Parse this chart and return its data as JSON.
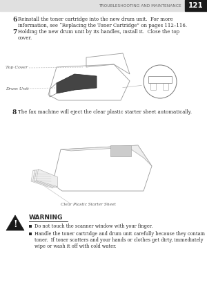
{
  "page_num": "121",
  "header_text": "TROUBLESHOOTING AND MAINTENANCE",
  "header_bg": "#e0e0e0",
  "page_bg": "#ffffff",
  "step6_num": "6",
  "step6_text": "Reinstall the toner cartridge into the new drum unit.  For more\ninformation, see “Replacing the Toner Cartridge” on pages 112–116.",
  "step7_num": "7",
  "step7_text": "Holding the new drum unit by its handles, install it.  Close the top\ncover.",
  "label_top_cover": "Top Cover",
  "label_drum_unit": "Drum Unit",
  "step8_num": "8",
  "step8_text": "The fax machine will eject the clear plastic starter sheet automatically.",
  "label_clear_sheet": "Clear Plastic Starter Sheet",
  "warning_title": "WARNING",
  "warning_bullet1": "Do not touch the scanner window with your finger.",
  "warning_bullet2": "Handle the toner cartridge and drum unit carefully because they contain\ntoner.  If toner scatters and your hands or clothes get dirty, immediately\nwipe or wash it off with cold water.",
  "text_color": "#2a2a2a",
  "label_color": "#555555",
  "header_text_color": "#666666",
  "page_num_bg": "#1a1a1a",
  "page_num_color": "#ffffff"
}
